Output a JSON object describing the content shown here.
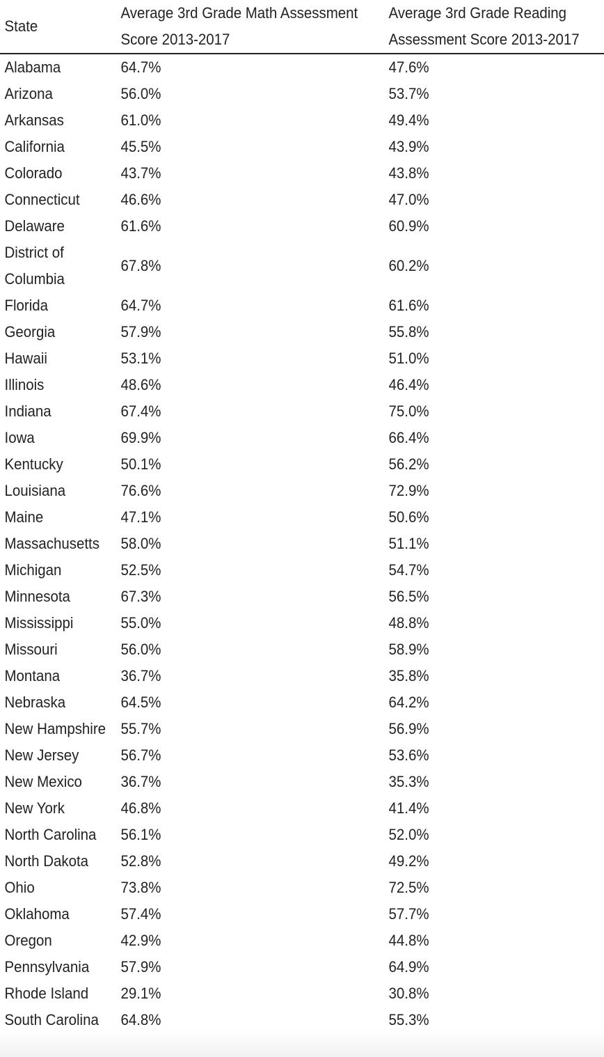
{
  "table": {
    "headers": {
      "state": "State",
      "math": "Average 3rd Grade Math Assessment Score 2013-2017",
      "reading": "Average 3rd Grade Reading Assessment Score 2013-2017"
    },
    "rows": [
      {
        "state": "Alabama",
        "math": "64.7%",
        "reading": "47.6%"
      },
      {
        "state": "Arizona",
        "math": "56.0%",
        "reading": "53.7%"
      },
      {
        "state": "Arkansas",
        "math": "61.0%",
        "reading": "49.4%"
      },
      {
        "state": "California",
        "math": "45.5%",
        "reading": "43.9%"
      },
      {
        "state": "Colorado",
        "math": "43.7%",
        "reading": "43.8%"
      },
      {
        "state": "Connecticut",
        "math": "46.6%",
        "reading": "47.0%"
      },
      {
        "state": "Delaware",
        "math": "61.6%",
        "reading": "60.9%"
      },
      {
        "state": "District of Columbia",
        "math": "67.8%",
        "reading": "60.2%"
      },
      {
        "state": "Florida",
        "math": "64.7%",
        "reading": "61.6%"
      },
      {
        "state": "Georgia",
        "math": "57.9%",
        "reading": "55.8%"
      },
      {
        "state": "Hawaii",
        "math": "53.1%",
        "reading": "51.0%"
      },
      {
        "state": "Illinois",
        "math": "48.6%",
        "reading": "46.4%"
      },
      {
        "state": "Indiana",
        "math": "67.4%",
        "reading": "75.0%"
      },
      {
        "state": "Iowa",
        "math": "69.9%",
        "reading": "66.4%"
      },
      {
        "state": "Kentucky",
        "math": "50.1%",
        "reading": "56.2%"
      },
      {
        "state": "Louisiana",
        "math": "76.6%",
        "reading": "72.9%"
      },
      {
        "state": "Maine",
        "math": "47.1%",
        "reading": "50.6%"
      },
      {
        "state": "Massachusetts",
        "math": "58.0%",
        "reading": "51.1%"
      },
      {
        "state": "Michigan",
        "math": "52.5%",
        "reading": "54.7%"
      },
      {
        "state": "Minnesota",
        "math": "67.3%",
        "reading": "56.5%"
      },
      {
        "state": "Mississippi",
        "math": "55.0%",
        "reading": "48.8%"
      },
      {
        "state": "Missouri",
        "math": "56.0%",
        "reading": "58.9%"
      },
      {
        "state": "Montana",
        "math": "36.7%",
        "reading": "35.8%"
      },
      {
        "state": "Nebraska",
        "math": "64.5%",
        "reading": "64.2%"
      },
      {
        "state": "New Hampshire",
        "math": "55.7%",
        "reading": "56.9%"
      },
      {
        "state": "New Jersey",
        "math": "56.7%",
        "reading": "53.6%"
      },
      {
        "state": "New Mexico",
        "math": "36.7%",
        "reading": "35.3%"
      },
      {
        "state": "New York",
        "math": "46.8%",
        "reading": "41.4%"
      },
      {
        "state": "North Carolina",
        "math": "56.1%",
        "reading": "52.0%"
      },
      {
        "state": "North Dakota",
        "math": "52.8%",
        "reading": "49.2%"
      },
      {
        "state": "Ohio",
        "math": "73.8%",
        "reading": "72.5%"
      },
      {
        "state": "Oklahoma",
        "math": "57.4%",
        "reading": "57.7%"
      },
      {
        "state": "Oregon",
        "math": "42.9%",
        "reading": "44.8%"
      },
      {
        "state": "Pennsylvania",
        "math": "57.9%",
        "reading": "64.9%"
      },
      {
        "state": "Rhode Island",
        "math": "29.1%",
        "reading": "30.8%"
      },
      {
        "state": "South Carolina",
        "math": "64.8%",
        "reading": "55.3%"
      }
    ]
  }
}
